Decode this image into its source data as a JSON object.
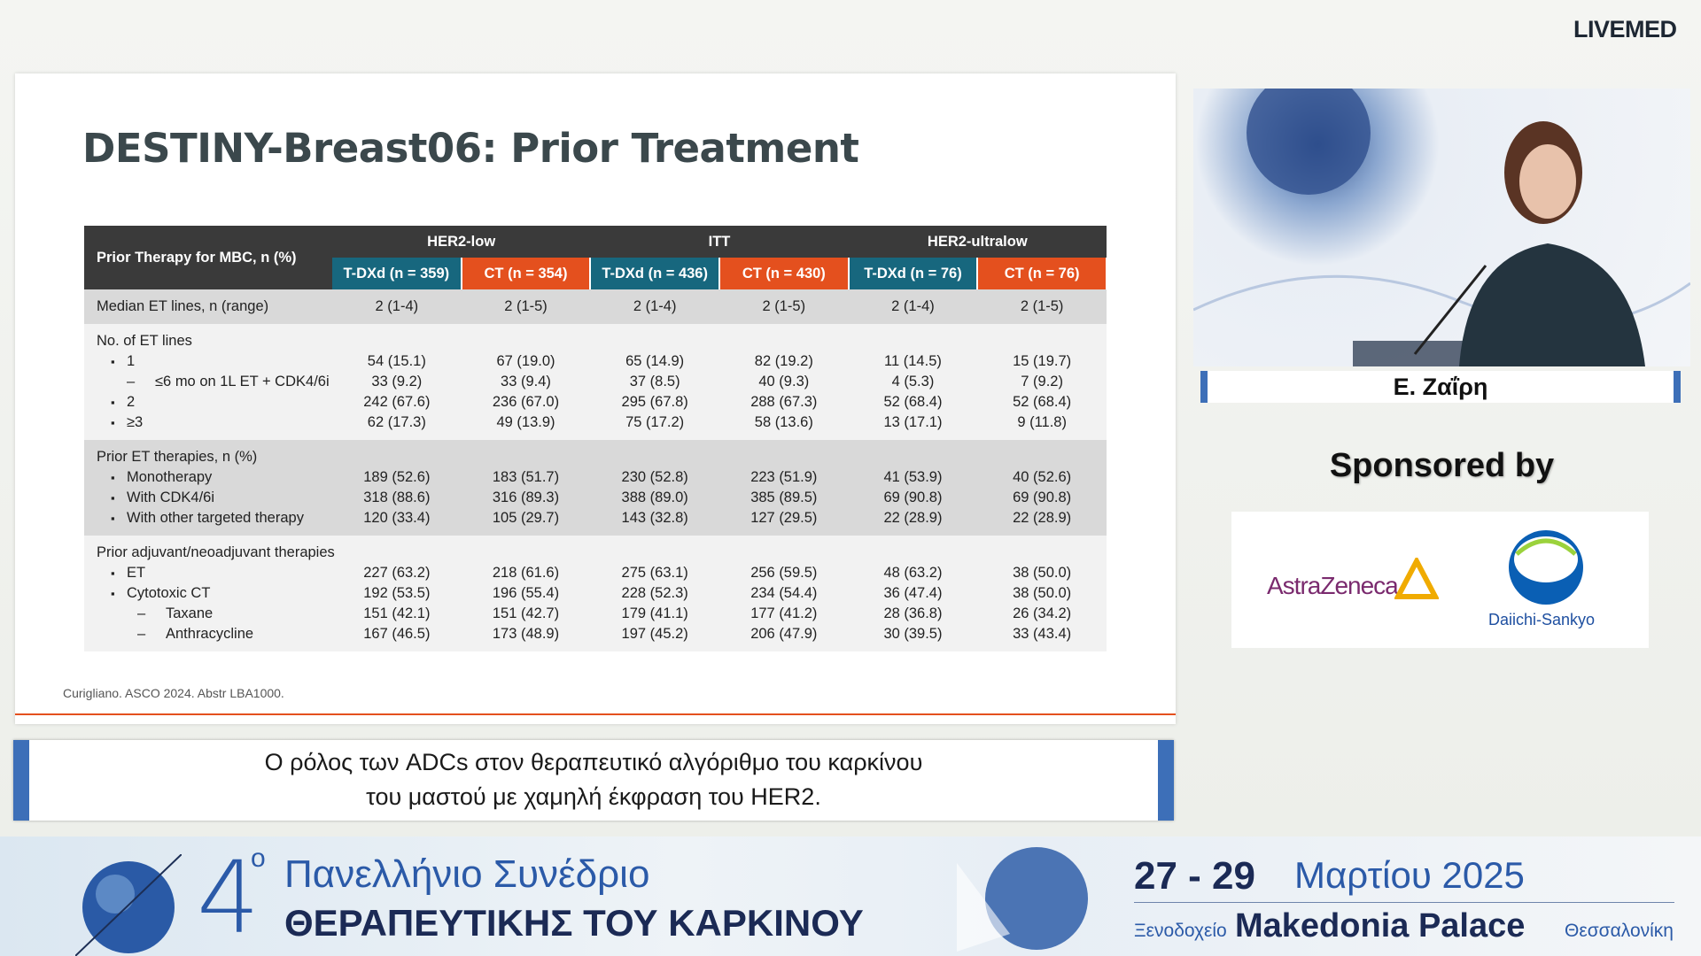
{
  "brand": "LIVEMED",
  "slide": {
    "title": "DESTINY-Breast06: Prior Treatment",
    "table": {
      "corner": "Prior Therapy for MBC, n (%)",
      "groups": [
        {
          "name": "HER2-low",
          "arms": [
            "T-DXd (n = 359)",
            "CT (n = 354)"
          ]
        },
        {
          "name": "ITT",
          "arms": [
            "T-DXd (n = 436)",
            "CT (n = 430)"
          ]
        },
        {
          "name": "HER2-ultralow",
          "arms": [
            "T-DXd (n = 76)",
            "CT (n = 76)"
          ]
        }
      ],
      "sections": [
        {
          "rows": [
            {
              "label": "Median ET lines, n (range)",
              "cells": [
                "2 (1-4)",
                "2 (1-5)",
                "2 (1-4)",
                "2 (1-5)",
                "2 (1-4)",
                "2 (1-5)"
              ]
            }
          ]
        },
        {
          "rows": [
            {
              "label": "No. of ET lines"
            },
            {
              "label": "1",
              "cells": [
                "54 (15.1)",
                "67 (19.0)",
                "65 (14.9)",
                "82 (19.2)",
                "11 (14.5)",
                "15 (19.7)"
              ]
            },
            {
              "label": "≤6 mo on 1L ET + CDK4/6i",
              "cells": [
                "33 (9.2)",
                "33 (9.4)",
                "37 (8.5)",
                "40 (9.3)",
                "4 (5.3)",
                "7 (9.2)"
              ]
            },
            {
              "label": "2",
              "cells": [
                "242 (67.6)",
                "236 (67.0)",
                "295 (67.8)",
                "288 (67.3)",
                "52 (68.4)",
                "52 (68.4)"
              ]
            },
            {
              "label": "≥3",
              "cells": [
                "62 (17.3)",
                "49 (13.9)",
                "75 (17.2)",
                "58 (13.6)",
                "13 (17.1)",
                "9 (11.8)"
              ]
            }
          ]
        },
        {
          "rows": [
            {
              "label": "Prior ET therapies, n (%)"
            },
            {
              "label": "Monotherapy",
              "cells": [
                "189 (52.6)",
                "183 (51.7)",
                "230 (52.8)",
                "223 (51.9)",
                "41 (53.9)",
                "40 (52.6)"
              ]
            },
            {
              "label": "With CDK4/6i",
              "cells": [
                "318 (88.6)",
                "316 (89.3)",
                "388 (89.0)",
                "385 (89.5)",
                "69 (90.8)",
                "69 (90.8)"
              ]
            },
            {
              "label": "With other targeted therapy",
              "cells": [
                "120 (33.4)",
                "105 (29.7)",
                "143 (32.8)",
                "127 (29.5)",
                "22 (28.9)",
                "22 (28.9)"
              ]
            }
          ]
        },
        {
          "rows": [
            {
              "label": "Prior adjuvant/neoadjuvant therapies"
            },
            {
              "label": "ET",
              "cells": [
                "227 (63.2)",
                "218 (61.6)",
                "275 (63.1)",
                "256 (59.5)",
                "48 (63.2)",
                "38 (50.0)"
              ]
            },
            {
              "label": "Cytotoxic CT",
              "cells": [
                "192 (53.5)",
                "196 (55.4)",
                "228 (52.3)",
                "234 (54.4)",
                "36 (47.4)",
                "38 (50.0)"
              ]
            },
            {
              "label": "Taxane",
              "cells": [
                "151 (42.1)",
                "151 (42.7)",
                "179 (41.1)",
                "177 (41.2)",
                "28 (36.8)",
                "26 (34.2)"
              ]
            },
            {
              "label": "Anthracycline",
              "cells": [
                "167 (46.5)",
                "173 (48.9)",
                "197 (45.2)",
                "206 (47.9)",
                "30 (39.5)",
                "33 (43.4)"
              ]
            }
          ]
        }
      ]
    },
    "footnote": "Curigliano. ASCO 2024. Abstr LBA1000."
  },
  "speaker": "Ε. Ζαΐρη",
  "sponsors": {
    "heading": "Sponsored by",
    "logos": [
      "AstraZeneca",
      "Daiichi-Sankyo"
    ]
  },
  "caption": [
    "Ο ρόλος των ADCs στον θεραπευτικό αλγόριθμο του καρκίνου",
    "του μαστού με χαμηλή έκφραση του HER2."
  ],
  "banner": {
    "number": "4",
    "ordinal": "ο",
    "line1": "Πανελλήνιο Συνέδριο",
    "line2": "ΘΕΡΑΠΕΥΤΙΚΗΣ ΤΟΥ ΚΑΡΚΙΝΟΥ",
    "days": "27 - 29",
    "month_year": "Μαρτίου 2025",
    "venue_prefix": "Ξενοδοχείο",
    "venue": "Makedonia Palace",
    "city": "Θεσσαλονίκη"
  }
}
